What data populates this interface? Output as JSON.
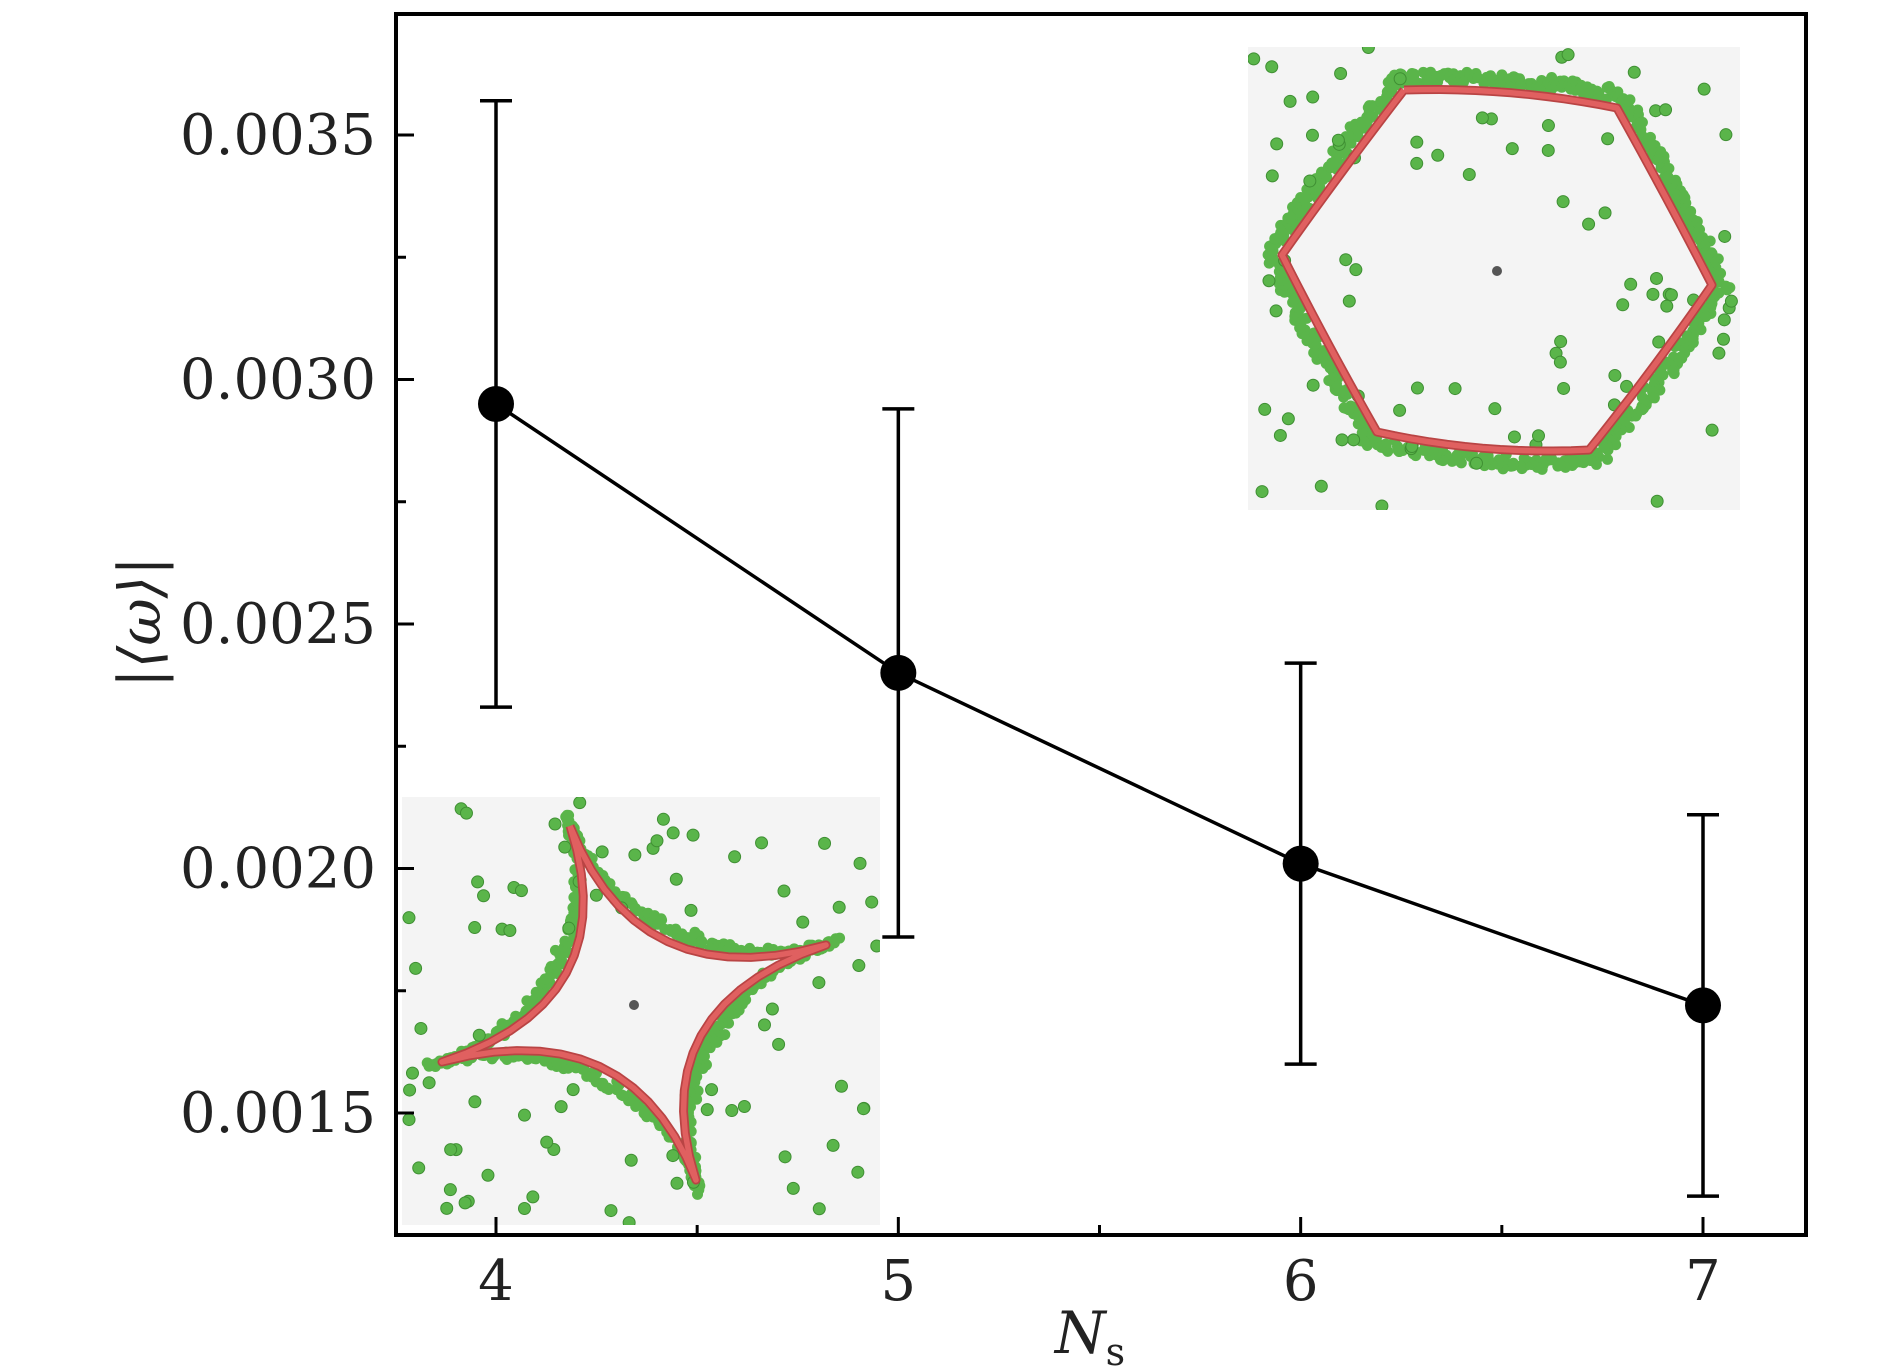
{
  "chart_data": {
    "type": "scatter",
    "title": "",
    "xlabel": "N",
    "xlabel_sub": "s",
    "ylabel": "|⟨ω⟩|",
    "x": [
      4,
      5,
      6,
      7
    ],
    "xticks": [
      "4",
      "5",
      "6",
      "7"
    ],
    "yticks": [
      "0.0015",
      "0.0020",
      "0.0025",
      "0.0030",
      "0.0035"
    ],
    "xlim": [
      3.75,
      7.25
    ],
    "ylim": [
      0.00124,
      0.00375
    ],
    "series": [
      {
        "values": [
          0.00295,
          0.0024,
          0.00201,
          0.00172
        ],
        "err_low": [
          0.00233,
          0.00186,
          0.0016,
          0.00133
        ],
        "err_high": [
          0.00357,
          0.00294,
          0.00242,
          0.00211
        ],
        "color": "#000000",
        "marker": "circle",
        "connected": true
      }
    ],
    "insets": [
      {
        "description": "four-armed filament with green particles",
        "arms": 4
      },
      {
        "description": "six-armed filament with green particles",
        "arms": 6
      }
    ],
    "colors": {
      "filament": "#e06060",
      "particles": "#5ab54a",
      "inset_bg": "#f4f4f4"
    },
    "grid": false,
    "legend": "none"
  }
}
